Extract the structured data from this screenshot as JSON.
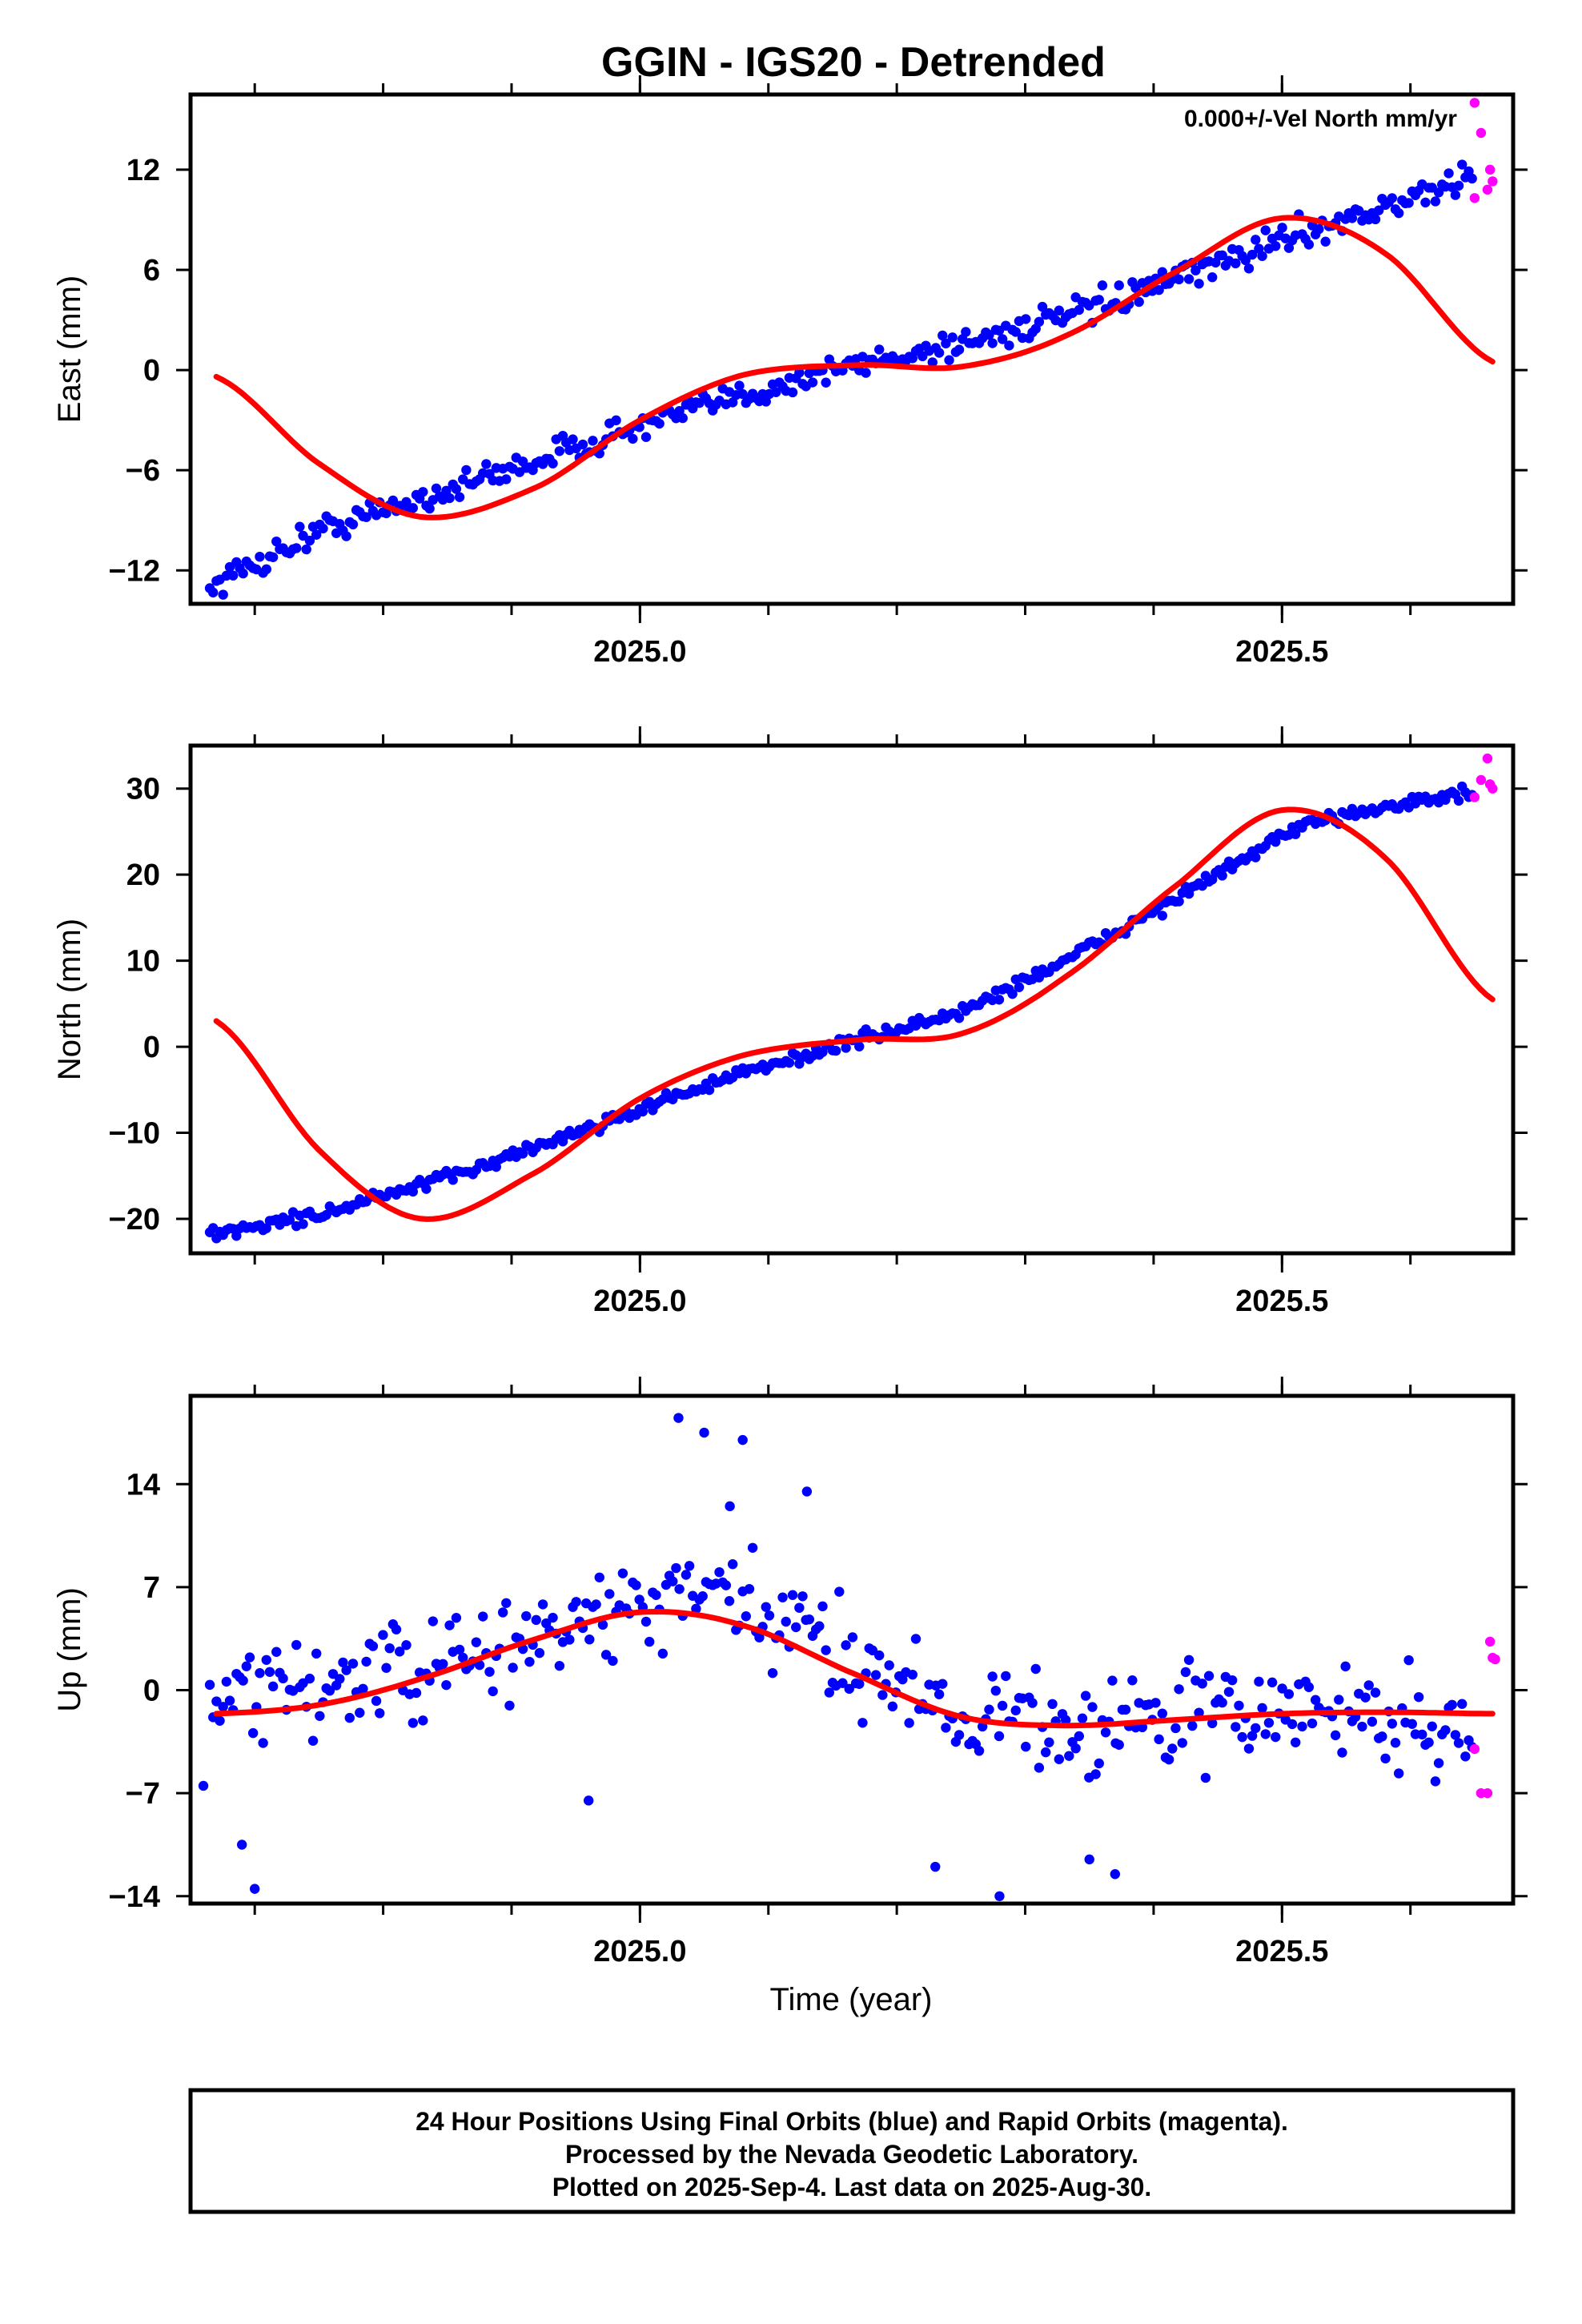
{
  "title": "GGIN - IGS20 - Detrended",
  "note": "0.000+/-Vel North mm/yr",
  "xlabel": "Time (year)",
  "footer": {
    "line1": "24 Hour Positions Using Final Orbits (blue) and Rapid Orbits (magenta).",
    "line2": "Processed by the Nevada Geodetic Laboratory.",
    "line3": "Plotted on 2025-Sep-4. Last data on 2025-Aug-30."
  },
  "colors": {
    "final": "#0000ff",
    "rapid": "#ff00ff",
    "model": "#ff0000",
    "frame": "#000000"
  },
  "chart_data": [
    {
      "type": "scatter",
      "ylabel": "East (mm)",
      "xlim": [
        2024.65,
        2025.68
      ],
      "ylim": [
        -14,
        16.5
      ],
      "yticks": [
        -12,
        -6,
        0,
        6,
        12
      ],
      "xticks": [
        2025.0,
        2025.5
      ],
      "model": [
        [
          2024.67,
          -0.4
        ],
        [
          2024.75,
          -5.6
        ],
        [
          2024.83,
          -8.8
        ],
        [
          2024.92,
          -7.0
        ],
        [
          2025.0,
          -3.0
        ],
        [
          2025.08,
          -0.3
        ],
        [
          2025.17,
          0.3
        ],
        [
          2025.25,
          0.2
        ],
        [
          2025.33,
          2.0
        ],
        [
          2025.42,
          6.0
        ],
        [
          2025.5,
          9.1
        ],
        [
          2025.58,
          7.0
        ],
        [
          2025.664,
          0.5
        ]
      ],
      "final_fit_knots": [
        [
          2024.665,
          -13.0
        ],
        [
          2024.75,
          -9.6
        ],
        [
          2024.85,
          -7.2
        ],
        [
          2024.95,
          -4.6
        ],
        [
          2025.05,
          -2.2
        ],
        [
          2025.15,
          0.0
        ],
        [
          2025.25,
          1.6
        ],
        [
          2025.35,
          3.6
        ],
        [
          2025.45,
          6.3
        ],
        [
          2025.5,
          7.9
        ],
        [
          2025.6,
          10.2
        ],
        [
          2025.648,
          11.6
        ]
      ],
      "final_spread": 1.1,
      "rapid_points": [
        [
          2025.65,
          16.0
        ],
        [
          2025.655,
          14.2
        ],
        [
          2025.65,
          10.3
        ],
        [
          2025.66,
          10.8
        ],
        [
          2025.662,
          12.0
        ],
        [
          2025.664,
          11.3
        ]
      ]
    },
    {
      "type": "scatter",
      "ylabel": "North (mm)",
      "xlim": [
        2024.65,
        2025.68
      ],
      "ylim": [
        -24,
        35
      ],
      "yticks": [
        -20,
        -10,
        0,
        10,
        20,
        30
      ],
      "xticks": [
        2025.0,
        2025.5
      ],
      "model": [
        [
          2024.67,
          3.0
        ],
        [
          2024.75,
          -12.0
        ],
        [
          2024.83,
          -20.0
        ],
        [
          2024.92,
          -14.5
        ],
        [
          2025.0,
          -6.0
        ],
        [
          2025.08,
          -1.0
        ],
        [
          2025.17,
          0.8
        ],
        [
          2025.25,
          1.5
        ],
        [
          2025.33,
          8.0
        ],
        [
          2025.42,
          19.0
        ],
        [
          2025.5,
          27.5
        ],
        [
          2025.58,
          22.0
        ],
        [
          2025.664,
          5.5
        ]
      ],
      "final_fit_knots": [
        [
          2024.665,
          -21.8
        ],
        [
          2024.75,
          -19.5
        ],
        [
          2024.85,
          -15.2
        ],
        [
          2024.95,
          -10.0
        ],
        [
          2025.05,
          -4.5
        ],
        [
          2025.15,
          0.0
        ],
        [
          2025.25,
          4.0
        ],
        [
          2025.35,
          11.5
        ],
        [
          2025.45,
          20.0
        ],
        [
          2025.5,
          24.5
        ],
        [
          2025.55,
          27.2
        ],
        [
          2025.648,
          29.5
        ]
      ],
      "final_spread": 1.0,
      "rapid_points": [
        [
          2025.65,
          29.0
        ],
        [
          2025.655,
          31.0
        ],
        [
          2025.66,
          33.5
        ],
        [
          2025.662,
          30.5
        ],
        [
          2025.664,
          30.0
        ]
      ]
    },
    {
      "type": "scatter",
      "ylabel": "Up (mm)",
      "xlim": [
        2024.65,
        2025.68
      ],
      "ylim": [
        -14.5,
        20
      ],
      "yticks": [
        -14,
        -7,
        0,
        7,
        14
      ],
      "xticks": [
        2025.0,
        2025.5
      ],
      "model": [
        [
          2024.67,
          -1.6
        ],
        [
          2024.75,
          -1.0
        ],
        [
          2024.83,
          0.8
        ],
        [
          2024.92,
          3.5
        ],
        [
          2025.0,
          5.3
        ],
        [
          2025.08,
          4.4
        ],
        [
          2025.17,
          1.0
        ],
        [
          2025.25,
          -1.8
        ],
        [
          2025.33,
          -2.4
        ],
        [
          2025.42,
          -2.0
        ],
        [
          2025.5,
          -1.6
        ],
        [
          2025.58,
          -1.5
        ],
        [
          2025.664,
          -1.6
        ]
      ],
      "final_fit_knots": [
        [
          2024.665,
          -1.5
        ],
        [
          2024.75,
          0.5
        ],
        [
          2024.85,
          1.5
        ],
        [
          2024.95,
          4.5
        ],
        [
          2025.05,
          6.5
        ],
        [
          2025.15,
          3.0
        ],
        [
          2025.25,
          -1.5
        ],
        [
          2025.35,
          -2.5
        ],
        [
          2025.45,
          -1.5
        ],
        [
          2025.55,
          -1.5
        ],
        [
          2025.648,
          -3.0
        ]
      ],
      "final_spread": 4.5,
      "final_outliers": [
        [
          2024.66,
          -6.5
        ],
        [
          2024.69,
          -10.5
        ],
        [
          2024.7,
          -13.5
        ],
        [
          2024.96,
          -7.5
        ],
        [
          2025.03,
          18.5
        ],
        [
          2025.05,
          17.5
        ],
        [
          2025.07,
          12.5
        ],
        [
          2025.08,
          17.0
        ],
        [
          2025.13,
          13.5
        ],
        [
          2025.23,
          -12.0
        ],
        [
          2025.28,
          -14.0
        ],
        [
          2025.35,
          -11.5
        ],
        [
          2025.37,
          -12.5
        ]
      ],
      "rapid_points": [
        [
          2025.65,
          -4.0
        ],
        [
          2025.655,
          -7.0
        ],
        [
          2025.66,
          -7.0
        ],
        [
          2025.662,
          3.3
        ],
        [
          2025.664,
          2.2
        ],
        [
          2025.666,
          2.1
        ]
      ]
    }
  ]
}
